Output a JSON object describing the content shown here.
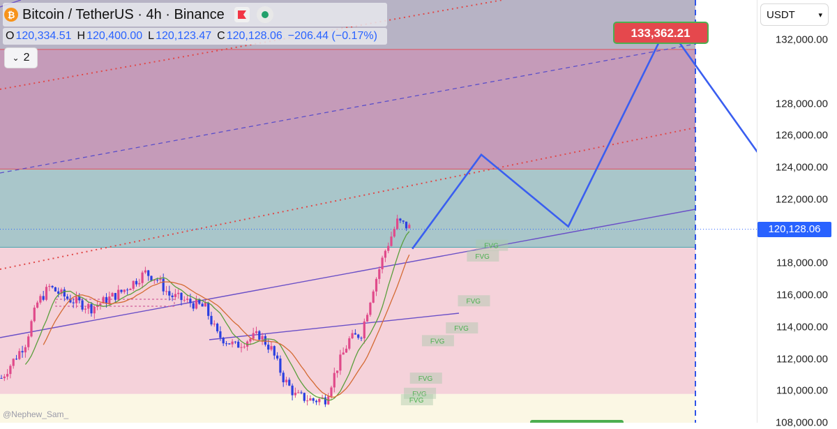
{
  "chart_data": {
    "type": "candlestick",
    "title": "Bitcoin / TetherUS · 4h · Binance",
    "ohlc": {
      "o_label": "O",
      "o": "120,334.51",
      "h_label": "H",
      "h": "120,400.00",
      "l_label": "L",
      "l": "120,123.47",
      "c_label": "C",
      "c": "120,128.06",
      "change": "−206.44 (−0.17%)"
    },
    "currency": "USDT",
    "indicator_count": "2",
    "current_price": 120128.06,
    "current_price_label": "120,128.06",
    "ylim": [
      108000,
      134500
    ],
    "y_ticks": [
      {
        "value": 108000,
        "label": "108,000.00"
      },
      {
        "value": 110000,
        "label": "110,000.00"
      },
      {
        "value": 112000,
        "label": "112,000.00"
      },
      {
        "value": 114000,
        "label": "114,000.00"
      },
      {
        "value": 116000,
        "label": "116,000.00"
      },
      {
        "value": 118000,
        "label": "118,000.00"
      },
      {
        "value": 120000,
        "label": "120,000.00"
      },
      {
        "value": 122000,
        "label": "122,000.00"
      },
      {
        "value": 124000,
        "label": "124,000.00"
      },
      {
        "value": 126000,
        "label": "126,000.00"
      },
      {
        "value": 128000,
        "label": "128,000.00"
      },
      {
        "value": 132000,
        "label": "132,000.00"
      }
    ],
    "target_label": "133,362.21",
    "target_value": 133362.21,
    "projection_path": [
      {
        "bar": 137,
        "price": 118900
      },
      {
        "bar": 160,
        "price": 124800
      },
      {
        "bar": 189,
        "price": 120300
      },
      {
        "bar": 222,
        "price": 132900
      },
      {
        "bar": 258,
        "price": 123400
      },
      {
        "bar": 278,
        "price": 126700
      }
    ],
    "zones": [
      {
        "from": 123900,
        "to": 131400,
        "color": "#c59bb9"
      },
      {
        "from": 119000,
        "to": 123900,
        "color": "#a9c6ca"
      },
      {
        "from": 109800,
        "to": 119000,
        "color": "#f5d2da"
      },
      {
        "from": 108000,
        "to": 109800,
        "color": "#fbf7e4"
      }
    ],
    "fvg_labels": [
      {
        "text": "FVG",
        "bar": 161,
        "price": 119080
      },
      {
        "text": "FVG",
        "bar": 158,
        "price": 118410
      },
      {
        "text": "FVG",
        "bar": 155,
        "price": 115600
      },
      {
        "text": "FVG",
        "bar": 151,
        "price": 113900
      },
      {
        "text": "FVG",
        "bar": 143,
        "price": 113100
      },
      {
        "text": "FVG",
        "bar": 139,
        "price": 110750
      },
      {
        "text": "FVG",
        "bar": 137,
        "price": 109800
      },
      {
        "text": "FVG",
        "bar": 136,
        "price": 109400
      }
    ],
    "watermark": "@Nephew_Sam_"
  }
}
